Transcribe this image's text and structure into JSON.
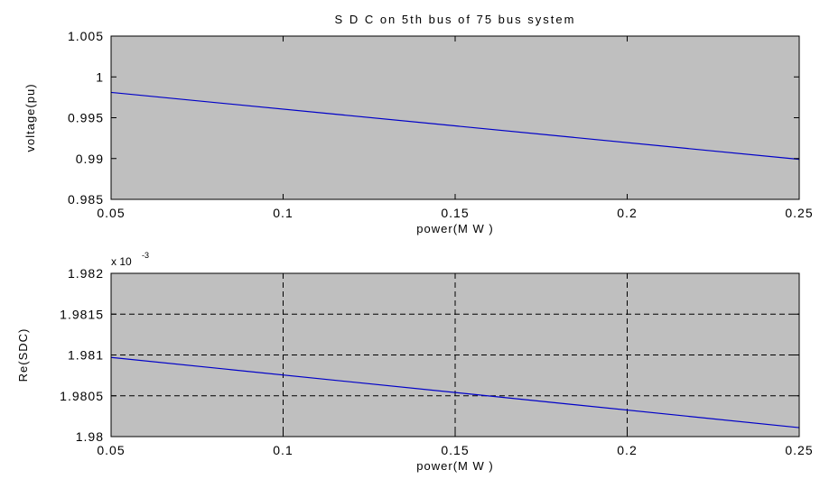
{
  "chart_data": [
    {
      "type": "line",
      "title": "S D C  on  5th  bus  of  75  bus  system",
      "xlabel": "power(M W )",
      "ylabel": "voltage(pu)",
      "xlim": [
        0.05,
        0.25
      ],
      "ylim": [
        0.985,
        1.005
      ],
      "xticks": [
        0.05,
        0.1,
        0.15,
        0.2,
        0.25
      ],
      "xtick_labels": [
        "0.05",
        "0.1",
        "0.15",
        "0.2",
        "0.25"
      ],
      "yticks": [
        0.985,
        0.99,
        0.995,
        1,
        1.005
      ],
      "ytick_labels": [
        "0.985",
        "0.99",
        "0.995",
        "1",
        "1.005"
      ],
      "grid": false,
      "background_color": "#bfbfbf",
      "series": [
        {
          "color": "#0000c8",
          "x": [
            0.05,
            0.25
          ],
          "y": [
            0.9981,
            0.9899
          ]
        }
      ]
    },
    {
      "type": "line",
      "xlabel": "power(M W )",
      "ylabel": "Re(SDC)",
      "exponent_label": "x 10",
      "exponent_power": "-3",
      "xlim": [
        0.05,
        0.25
      ],
      "ylim": [
        1.98,
        1.982
      ],
      "xticks": [
        0.05,
        0.1,
        0.15,
        0.2,
        0.25
      ],
      "xtick_labels": [
        "0.05",
        "0.1",
        "0.15",
        "0.2",
        "0.25"
      ],
      "yticks": [
        1.98,
        1.9805,
        1.981,
        1.9815,
        1.982
      ],
      "ytick_labels": [
        "1.98",
        "1.9805",
        "1.981",
        "1.9815",
        "1.982"
      ],
      "grid": true,
      "background_color": "#bfbfbf",
      "series": [
        {
          "color": "#0000c8",
          "x": [
            0.05,
            0.25
          ],
          "y": [
            1.98097,
            1.98011
          ]
        }
      ]
    }
  ]
}
